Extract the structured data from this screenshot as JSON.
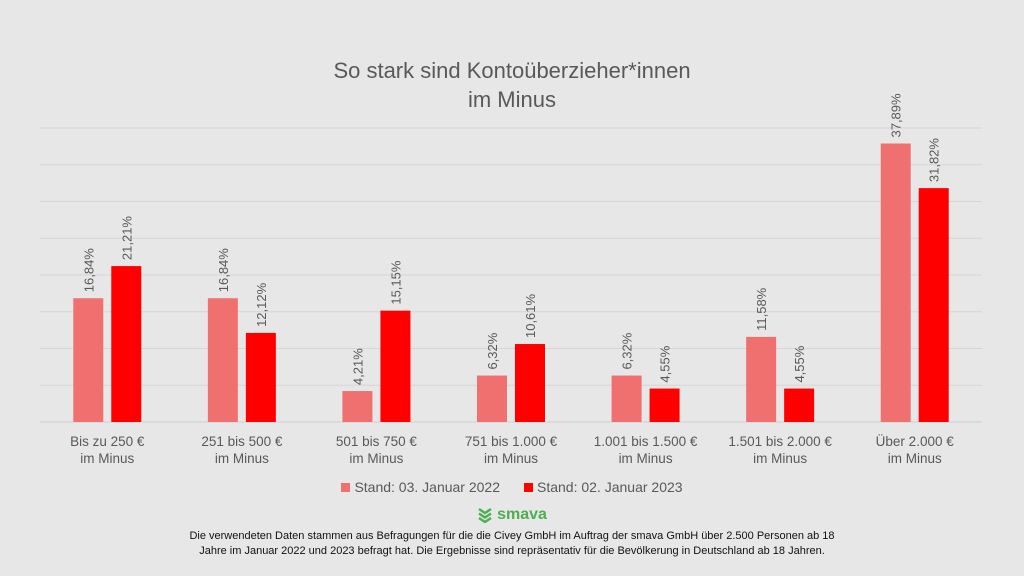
{
  "chart_data": {
    "type": "bar",
    "title": "So stark sind Kontoüberzieher*innen im Minus",
    "title_lines": [
      "So stark sind Kontoüberzieher*innen",
      "im Minus"
    ],
    "categories": [
      [
        "Bis zu 250 €",
        "im Minus"
      ],
      [
        "251 bis 500 €",
        "im Minus"
      ],
      [
        "501 bis 750 €",
        "im Minus"
      ],
      [
        "751 bis 1.000 €",
        "im Minus"
      ],
      [
        "1.001 bis 1.500 €",
        "im Minus"
      ],
      [
        "1.501 bis 2.000 €",
        "im Minus"
      ],
      [
        "Über 2.000 €",
        "im Minus"
      ]
    ],
    "series": [
      {
        "name": "Stand: 03. Januar 2022",
        "color": "#f07070",
        "values": [
          16.84,
          16.84,
          4.21,
          6.32,
          6.32,
          11.58,
          37.89
        ],
        "labels": [
          "16,84%",
          "16,84%",
          "4,21%",
          "6,32%",
          "6,32%",
          "11,58%",
          "37,89%"
        ]
      },
      {
        "name": "Stand: 02. Januar 2023",
        "color": "#ff0000",
        "values": [
          21.21,
          12.12,
          15.15,
          10.61,
          4.55,
          4.55,
          31.82
        ],
        "labels": [
          "21,21%",
          "12,12%",
          "15,15%",
          "10,61%",
          "4,55%",
          "4,55%",
          "31,82%"
        ]
      }
    ],
    "ylim": [
      0,
      40
    ],
    "grid": true,
    "legend": "bottom",
    "xlabel": "",
    "ylabel": ""
  },
  "logo": {
    "text": "smava",
    "color": "#4caf50"
  },
  "footer": {
    "line1": "Die verwendeten Daten stammen aus Befragungen für die die Civey GmbH im Auftrag der smava GmbH über 2.500 Personen ab 18",
    "line2": "Jahre im Januar 2022 und 2023 befragt hat. Die Ergebnisse sind repräsentativ für die Bevölkerung in Deutschland ab 18 Jahren."
  }
}
